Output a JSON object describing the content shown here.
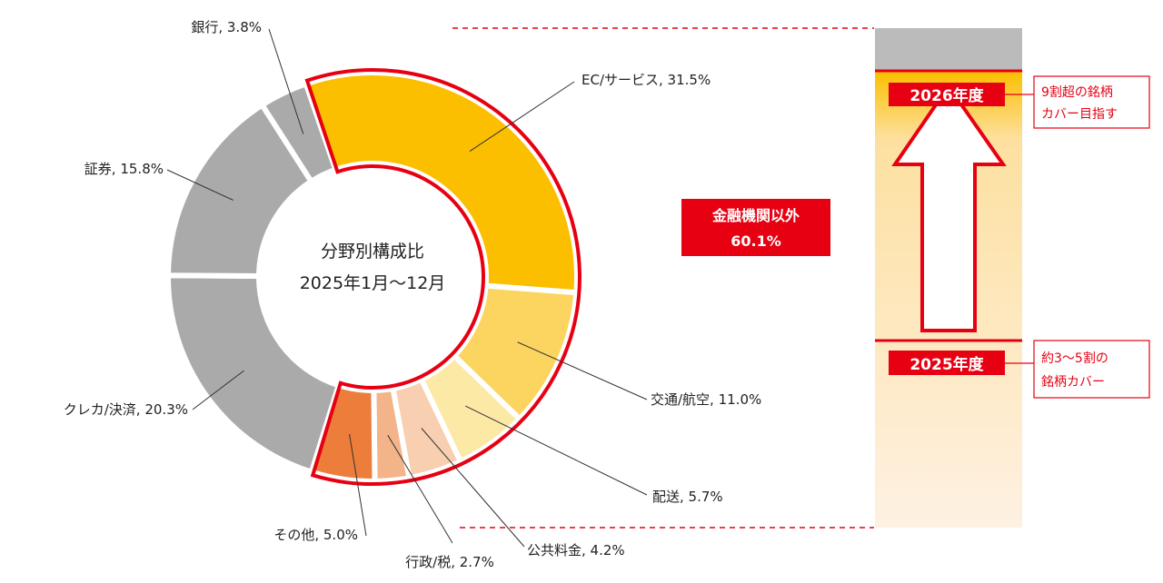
{
  "chart_data": {
    "type": "donut",
    "center_label": [
      "分野別構成比",
      "2025年1月〜12月"
    ],
    "slices": [
      {
        "label": "EC/サービス, 31.5%",
        "value": 31.5,
        "color": "#fbbf00",
        "group": "non_financial"
      },
      {
        "label": "交通/航空, 11.0%",
        "value": 11.0,
        "color": "#fbd560",
        "group": "non_financial"
      },
      {
        "label": "配送, 5.7%",
        "value": 5.7,
        "color": "#fde9a6",
        "group": "non_financial"
      },
      {
        "label": "公共料金, 4.2%",
        "value": 4.2,
        "color": "#f8cfb0",
        "group": "non_financial"
      },
      {
        "label": "行政/税, 2.7%",
        "value": 2.7,
        "color": "#f4b489",
        "group": "non_financial"
      },
      {
        "label": "その他, 5.0%",
        "value": 5.0,
        "color": "#ec7d3b",
        "group": "non_financial"
      },
      {
        "label": "クレカ/決済, 20.3%",
        "value": 20.3,
        "color": "#aaaaaa",
        "group": "financial"
      },
      {
        "label": "証券, 15.8%",
        "value": 15.8,
        "color": "#aaaaaa",
        "group": "financial"
      },
      {
        "label": "銀行, 3.8%",
        "value": 3.8,
        "color": "#aaaaaa",
        "group": "financial"
      }
    ],
    "highlight": {
      "label": "金融機関以外",
      "value_text": "60.1%",
      "color": "#e60012"
    },
    "coverage_bar": {
      "year_2026": "2026年度",
      "note_2026": [
        "9割超の銘柄",
        "カバー目指す"
      ],
      "year_2025": "2025年度",
      "note_2025": [
        "約3〜5割の",
        "銘柄カバー"
      ]
    }
  }
}
